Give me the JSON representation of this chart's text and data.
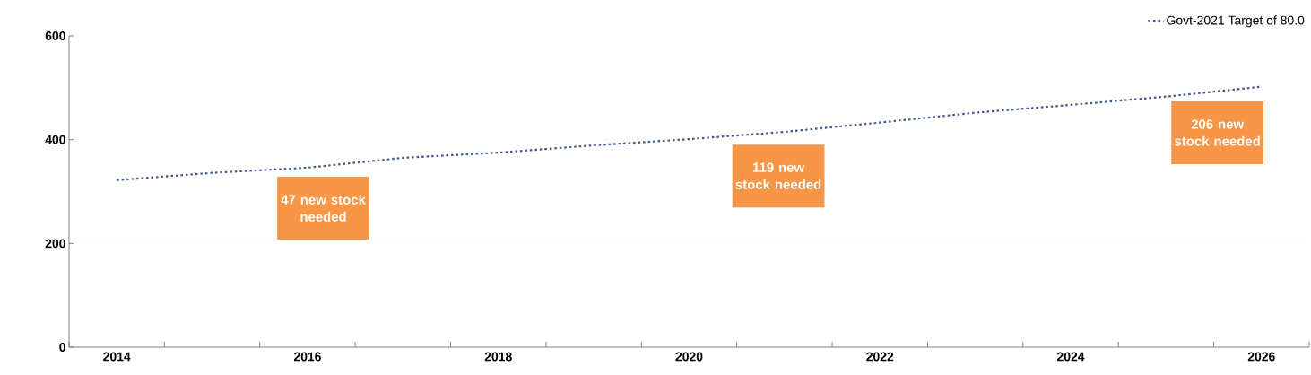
{
  "chart_data": {
    "type": "line",
    "categories": [
      "2014",
      null,
      "2016",
      null,
      "2018",
      null,
      "2020",
      null,
      "2022",
      null,
      "2024",
      null,
      "2026"
    ],
    "series": [
      {
        "name": "Govt-2021 Target of 80.0",
        "color": "#3d5a8c",
        "line_style": "dotted",
        "values": [
          322,
          336,
          346,
          365,
          375,
          389,
          401,
          415,
          433,
          452,
          467,
          483,
          502
        ]
      }
    ],
    "ylim": [
      0,
      600
    ],
    "yticks": [
      0,
      200,
      400,
      600
    ],
    "grid": "y",
    "legend": "top right",
    "marker": "none",
    "annotations": [
      "47 new stock needed",
      "119 new stock needed",
      "206 new stock needed"
    ]
  }
}
